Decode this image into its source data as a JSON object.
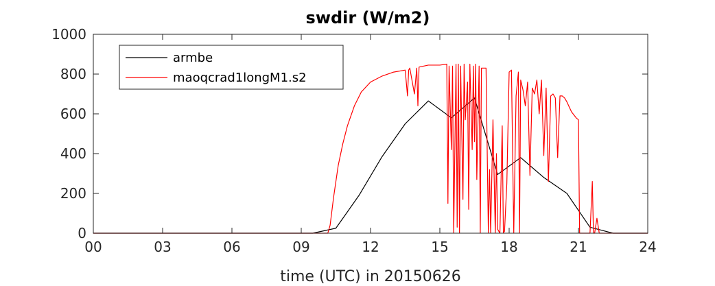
{
  "chart_data": {
    "type": "line",
    "title": "swdir  (W/m2)",
    "xlabel": "time (UTC) in 20150626",
    "ylabel": "",
    "xlim": [
      0,
      24
    ],
    "ylim": [
      0,
      1000
    ],
    "x_ticks": [
      0,
      3,
      6,
      9,
      12,
      15,
      18,
      21,
      24
    ],
    "x_tick_labels": [
      "00",
      "03",
      "06",
      "09",
      "12",
      "15",
      "18",
      "21",
      "24"
    ],
    "y_ticks": [
      0,
      200,
      400,
      600,
      800,
      1000
    ],
    "y_tick_labels": [
      "0",
      "200",
      "400",
      "600",
      "800",
      "1000"
    ],
    "grid": false,
    "legend_position": "top-left",
    "series": [
      {
        "name": "armbe",
        "color": "#000000",
        "x": [
          0,
          9.5,
          10.5,
          11.5,
          12.5,
          13.5,
          14.5,
          15.5,
          16.5,
          17.5,
          18.5,
          19.5,
          20.5,
          21.5,
          22.5,
          24
        ],
        "y": [
          0,
          0,
          25,
          190,
          385,
          550,
          665,
          580,
          680,
          295,
          380,
          280,
          200,
          30,
          0,
          0
        ]
      },
      {
        "name": "maoqcrad1longM1.s2",
        "color": "#ff0000",
        "x": [
          0,
          10.15,
          10.25,
          10.4,
          10.6,
          10.8,
          11.0,
          11.3,
          11.6,
          12.0,
          12.5,
          13.0,
          13.5,
          13.6,
          13.65,
          13.7,
          13.9,
          14.0,
          14.05,
          14.1,
          14.5,
          15.0,
          15.3,
          15.35,
          15.4,
          15.5,
          15.55,
          15.6,
          15.7,
          15.75,
          15.8,
          15.85,
          15.9,
          16.0,
          16.05,
          16.1,
          16.2,
          16.25,
          16.3,
          16.4,
          16.45,
          16.5,
          16.55,
          16.6,
          16.7,
          16.75,
          16.8,
          16.9,
          17.0,
          17.1,
          17.15,
          17.2,
          17.3,
          17.4,
          17.45,
          17.5,
          17.6,
          17.7,
          17.75,
          17.8,
          17.9,
          18.0,
          18.1,
          18.2,
          18.3,
          18.4,
          18.45,
          18.5,
          18.6,
          18.7,
          18.8,
          18.9,
          19.0,
          19.1,
          19.2,
          19.3,
          19.4,
          19.5,
          19.6,
          19.7,
          19.8,
          19.9,
          20.0,
          20.1,
          20.2,
          20.3,
          20.4,
          20.5,
          20.7,
          20.9,
          21.0,
          21.05,
          21.1,
          21.3,
          21.5,
          21.6,
          21.65,
          21.7,
          21.8,
          21.9,
          22.0,
          24
        ],
        "y": [
          0,
          0,
          40,
          180,
          340,
          450,
          540,
          640,
          710,
          760,
          790,
          810,
          820,
          690,
          820,
          830,
          700,
          830,
          640,
          835,
          845,
          845,
          850,
          150,
          840,
          420,
          840,
          0,
          850,
          30,
          850,
          0,
          840,
          170,
          850,
          570,
          760,
          120,
          850,
          420,
          840,
          460,
          850,
          270,
          840,
          0,
          830,
          830,
          830,
          0,
          320,
          0,
          570,
          0,
          400,
          20,
          0,
          540,
          0,
          10,
          250,
          810,
          820,
          0,
          690,
          810,
          0,
          770,
          720,
          640,
          760,
          290,
          730,
          700,
          770,
          600,
          770,
          390,
          730,
          260,
          690,
          700,
          680,
          380,
          690,
          690,
          680,
          660,
          610,
          580,
          570,
          0,
          0,
          0,
          0,
          260,
          0,
          0,
          75,
          0,
          0,
          0
        ]
      }
    ]
  }
}
